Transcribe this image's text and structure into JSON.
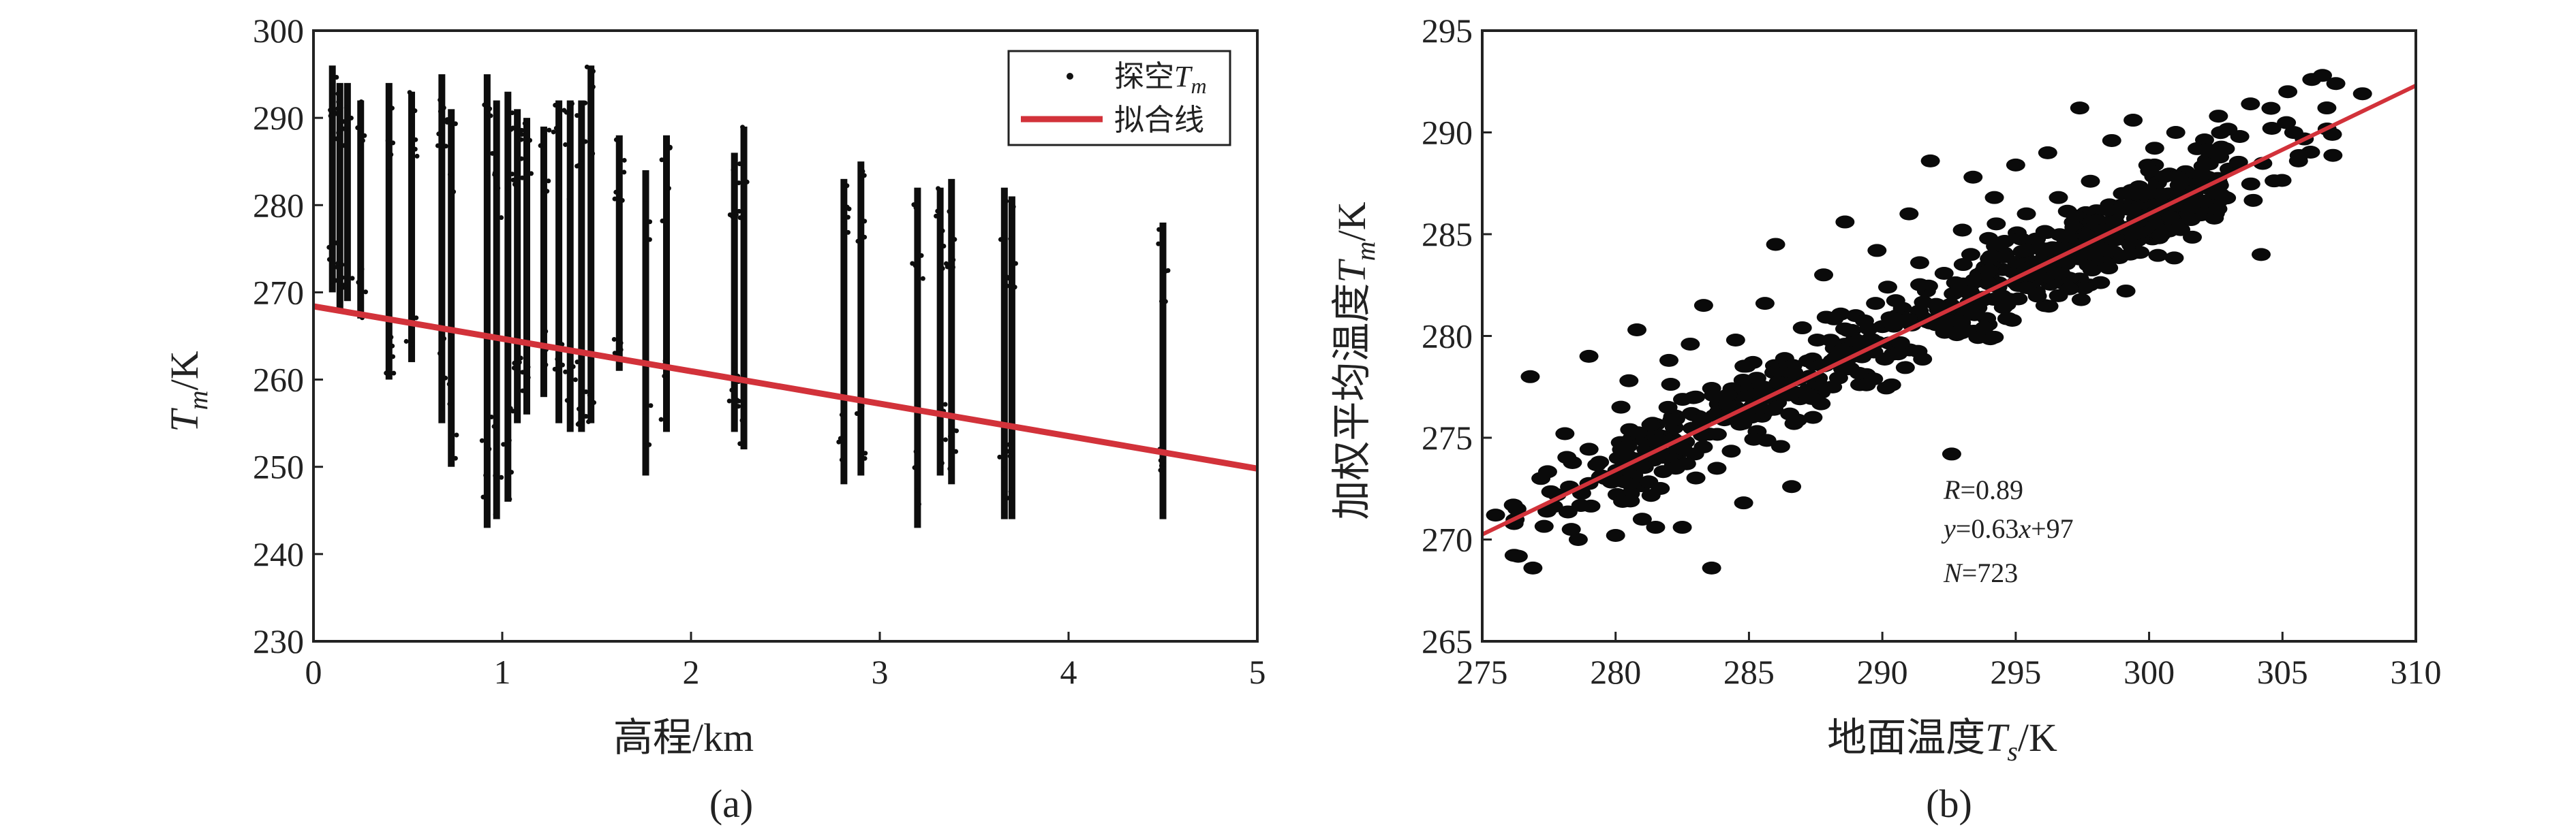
{
  "chart_data": [
    {
      "panel_label": "(a)",
      "type": "scatter",
      "xlabel": "高程/km",
      "ylabel": "T_m/K",
      "ylabel_main": "T",
      "ylabel_sub": "m",
      "ylabel_unit": "/K",
      "xlim": [
        0,
        5
      ],
      "ylim": [
        230,
        300
      ],
      "xticks": [
        "0",
        "1",
        "2",
        "3",
        "4",
        "5"
      ],
      "yticks": [
        "230",
        "240",
        "250",
        "260",
        "270",
        "280",
        "290",
        "300"
      ],
      "legend": {
        "position": "top-right",
        "entries": [
          {
            "label": "探空T_m",
            "label_main": "探空",
            "label_var": "T",
            "label_sub": "m",
            "marker": "dot"
          },
          {
            "label": "拟合线",
            "marker": "line"
          }
        ]
      },
      "columns": [
        {
          "x": 0.1,
          "ymin": 270,
          "ymax": 296
        },
        {
          "x": 0.14,
          "ymin": 268,
          "ymax": 294
        },
        {
          "x": 0.18,
          "ymin": 269,
          "ymax": 294
        },
        {
          "x": 0.25,
          "ymin": 267,
          "ymax": 292
        },
        {
          "x": 0.4,
          "ymin": 260,
          "ymax": 294
        },
        {
          "x": 0.52,
          "ymin": 262,
          "ymax": 293
        },
        {
          "x": 0.68,
          "ymin": 255,
          "ymax": 295
        },
        {
          "x": 0.73,
          "ymin": 250,
          "ymax": 291
        },
        {
          "x": 0.92,
          "ymin": 243,
          "ymax": 295
        },
        {
          "x": 0.97,
          "ymin": 244,
          "ymax": 292
        },
        {
          "x": 1.03,
          "ymin": 246,
          "ymax": 293
        },
        {
          "x": 1.08,
          "ymin": 255,
          "ymax": 291
        },
        {
          "x": 1.13,
          "ymin": 256,
          "ymax": 290
        },
        {
          "x": 1.22,
          "ymin": 258,
          "ymax": 289
        },
        {
          "x": 1.3,
          "ymin": 255,
          "ymax": 292
        },
        {
          "x": 1.36,
          "ymin": 254,
          "ymax": 292
        },
        {
          "x": 1.42,
          "ymin": 254,
          "ymax": 292
        },
        {
          "x": 1.47,
          "ymin": 255,
          "ymax": 296
        },
        {
          "x": 1.62,
          "ymin": 261,
          "ymax": 288
        },
        {
          "x": 1.76,
          "ymin": 249,
          "ymax": 284
        },
        {
          "x": 1.87,
          "ymin": 254,
          "ymax": 288
        },
        {
          "x": 2.23,
          "ymin": 254,
          "ymax": 286
        },
        {
          "x": 2.28,
          "ymin": 252,
          "ymax": 289
        },
        {
          "x": 2.81,
          "ymin": 248,
          "ymax": 283
        },
        {
          "x": 2.9,
          "ymin": 249,
          "ymax": 285
        },
        {
          "x": 3.2,
          "ymin": 243,
          "ymax": 282
        },
        {
          "x": 3.32,
          "ymin": 249,
          "ymax": 282
        },
        {
          "x": 3.38,
          "ymin": 248,
          "ymax": 283
        },
        {
          "x": 3.66,
          "ymin": 244,
          "ymax": 282
        },
        {
          "x": 3.7,
          "ymin": 244,
          "ymax": 281
        },
        {
          "x": 4.5,
          "ymin": 244,
          "ymax": 278
        }
      ],
      "fit_line": {
        "x": [
          0,
          5
        ],
        "y": [
          268.4,
          249.8
        ]
      }
    },
    {
      "panel_label": "(b)",
      "type": "scatter",
      "xlabel": "地面温度T_s/K",
      "xlabel_main": "地面温度",
      "xlabel_var": "T",
      "xlabel_sub": "s",
      "xlabel_unit": "/K",
      "ylabel": "加权平均温度T_m/K",
      "ylabel_main": "加权平均温度",
      "ylabel_var": "T",
      "ylabel_sub": "m",
      "ylabel_unit": "/K",
      "xlim": [
        275,
        310
      ],
      "ylim": [
        265,
        295
      ],
      "xticks": [
        "275",
        "280",
        "285",
        "290",
        "295",
        "300",
        "305",
        "310"
      ],
      "yticks": [
        "265",
        "270",
        "275",
        "280",
        "285",
        "290",
        "295"
      ],
      "annotations": {
        "r_var": "R",
        "r_value": "=0.89",
        "eq_y": "y",
        "eq_mid": "=0.63",
        "eq_x": "x",
        "eq_end": "+97",
        "n_var": "N",
        "n_value": "=723"
      },
      "points_count": 723,
      "points_sample": [
        [
          275.5,
          271.2
        ],
        [
          276.3,
          271.5
        ],
        [
          276.8,
          278.0
        ],
        [
          276.9,
          268.6
        ],
        [
          277.2,
          273.0
        ],
        [
          277.8,
          272.2
        ],
        [
          278.1,
          275.2
        ],
        [
          278.6,
          270.0
        ],
        [
          279.0,
          279.0
        ],
        [
          279.4,
          273.8
        ],
        [
          280.0,
          270.2
        ],
        [
          280.2,
          276.5
        ],
        [
          280.5,
          277.8
        ],
        [
          280.8,
          280.3
        ],
        [
          281.0,
          271.0
        ],
        [
          281.3,
          274.8
        ],
        [
          281.5,
          270.6
        ],
        [
          282.0,
          278.8
        ],
        [
          282.2,
          275.5
        ],
        [
          282.5,
          270.6
        ],
        [
          282.8,
          279.6
        ],
        [
          283.0,
          277.0
        ],
        [
          283.3,
          281.5
        ],
        [
          283.6,
          268.6
        ],
        [
          283.8,
          273.5
        ],
        [
          284.2,
          276.2
        ],
        [
          284.5,
          279.8
        ],
        [
          284.8,
          271.8
        ],
        [
          285.2,
          277.4
        ],
        [
          285.6,
          281.6
        ],
        [
          286.0,
          284.5
        ],
        [
          286.3,
          278.2
        ],
        [
          286.6,
          272.6
        ],
        [
          287.0,
          280.4
        ],
        [
          287.4,
          276.0
        ],
        [
          287.8,
          283.0
        ],
        [
          288.2,
          279.4
        ],
        [
          288.6,
          285.6
        ],
        [
          289.0,
          281.0
        ],
        [
          289.4,
          277.6
        ],
        [
          289.8,
          284.2
        ],
        [
          290.2,
          282.4
        ],
        [
          290.6,
          279.6
        ],
        [
          291.0,
          286.0
        ],
        [
          291.4,
          283.6
        ],
        [
          291.8,
          288.6
        ],
        [
          292.2,
          281.4
        ],
        [
          292.6,
          274.2
        ],
        [
          293.0,
          285.2
        ],
        [
          293.4,
          287.8
        ],
        [
          293.8,
          283.2
        ],
        [
          294.2,
          286.8
        ],
        [
          294.6,
          284.0
        ],
        [
          295.0,
          288.4
        ],
        [
          295.4,
          286.0
        ],
        [
          295.8,
          283.0
        ],
        [
          296.2,
          289.0
        ],
        [
          296.6,
          286.8
        ],
        [
          297.0,
          284.6
        ],
        [
          297.4,
          291.2
        ],
        [
          297.8,
          287.6
        ],
        [
          298.2,
          285.4
        ],
        [
          298.6,
          289.6
        ],
        [
          299.0,
          287.0
        ],
        [
          299.4,
          290.6
        ],
        [
          299.8,
          285.2
        ],
        [
          300.2,
          288.4
        ],
        [
          300.6,
          286.6
        ],
        [
          301.0,
          290.0
        ],
        [
          301.4,
          287.4
        ],
        [
          301.8,
          289.2
        ],
        [
          302.2,
          287.8
        ],
        [
          302.6,
          290.8
        ],
        [
          303.0,
          288.2
        ],
        [
          303.4,
          289.8
        ],
        [
          303.8,
          291.4
        ],
        [
          304.2,
          284.0
        ],
        [
          304.6,
          290.2
        ],
        [
          305.2,
          292.0
        ],
        [
          305.6,
          288.6
        ],
        [
          306.1,
          292.6
        ],
        [
          306.5,
          292.8
        ],
        [
          307.0,
          292.4
        ],
        [
          308.0,
          291.9
        ]
      ],
      "fit_line": {
        "x": [
          275,
          310
        ],
        "y": [
          270.25,
          292.3
        ]
      }
    }
  ]
}
